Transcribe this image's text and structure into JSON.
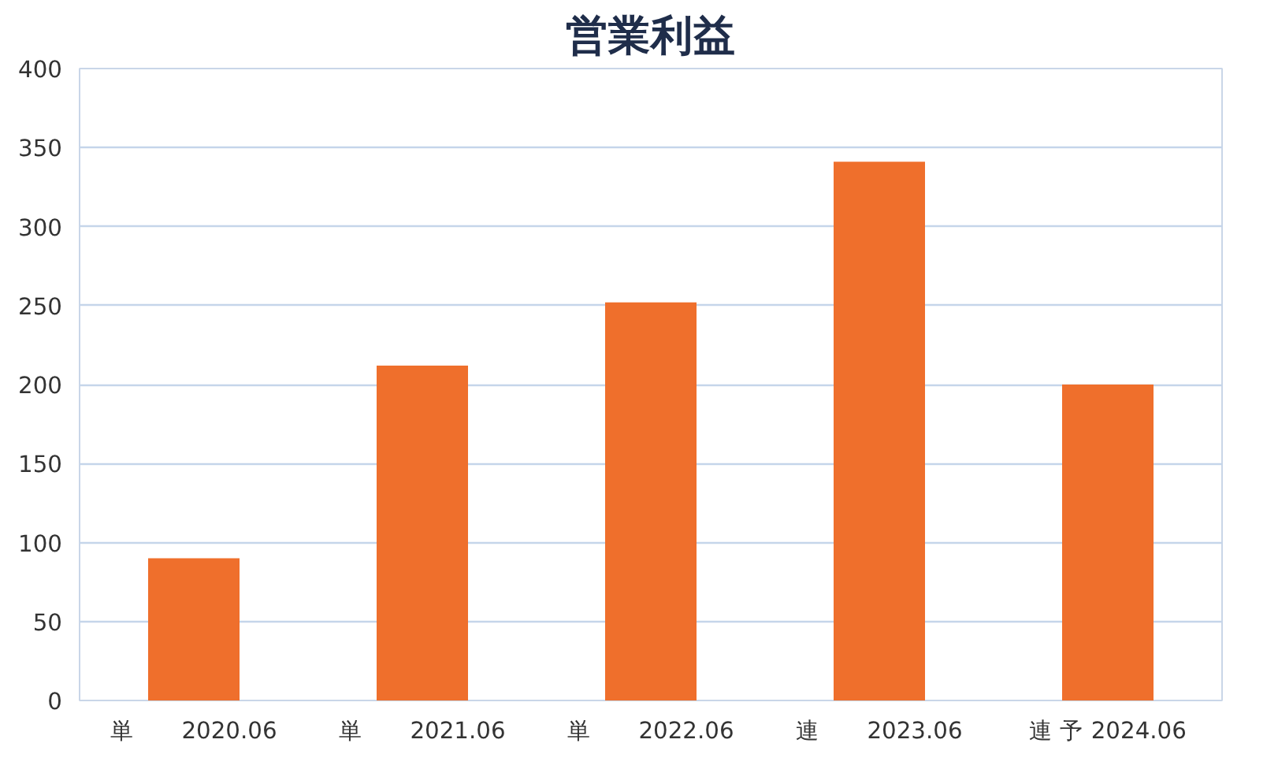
{
  "chart_data": {
    "type": "bar",
    "title": "営業利益",
    "categories": [
      "単　　2020.06",
      "単　　2021.06",
      "単　　2022.06",
      "連　　2023.06",
      "連 予 2024.06"
    ],
    "values": [
      90,
      212,
      252,
      341,
      200
    ],
    "color": "#ef6f2c",
    "ylim": [
      0,
      400
    ],
    "yticks": [
      0,
      50,
      100,
      150,
      200,
      250,
      300,
      350,
      400
    ],
    "grid": "y"
  }
}
